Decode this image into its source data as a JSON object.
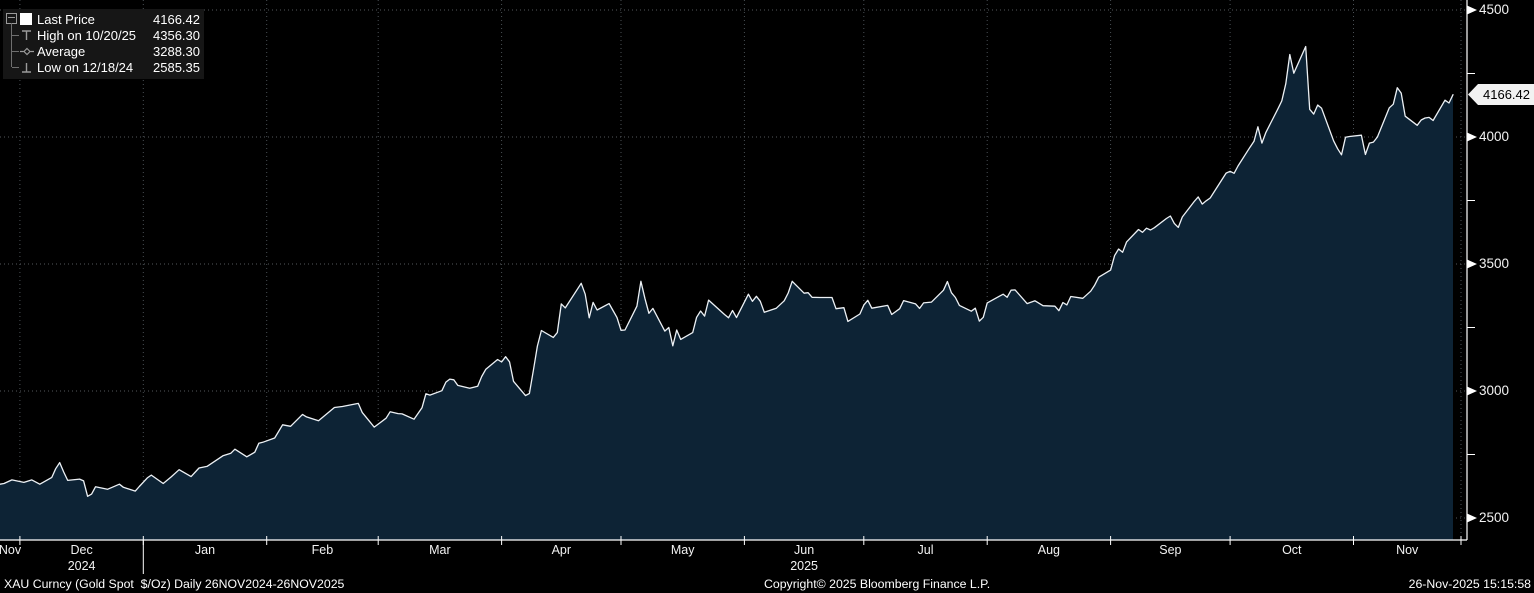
{
  "chart_data": {
    "type": "area",
    "title": "XAU Curncy (Gold Spot  $/Oz) Daily 26NOV2024-26NOV2025",
    "xlabel": "",
    "ylabel": "",
    "x_start_date": "2024-11-26",
    "x_end_date": "2025-11-26",
    "last_price": 4166.42,
    "last_price_label": "4166.42",
    "high": {
      "label": "High on 10/20/25",
      "value": 4356.3
    },
    "average": {
      "label": "Average",
      "value": 3288.3
    },
    "low": {
      "label": "Low on 12/18/24",
      "value": 2585.35
    },
    "y_axis": {
      "major_ticks": [
        2500,
        3000,
        3500,
        4000,
        4500
      ],
      "minor_ticks": [
        2750,
        3250,
        3750,
        4250
      ],
      "range_shown": [
        2500,
        4500
      ]
    },
    "grid": "dotted",
    "legend_position": "top-left",
    "months": [
      {
        "label": "Nov",
        "start_day": 0,
        "end_day": 5
      },
      {
        "label": "Dec",
        "start_day": 5,
        "end_day": 36
      },
      {
        "label": "Jan",
        "start_day": 36,
        "end_day": 67
      },
      {
        "label": "Feb",
        "start_day": 67,
        "end_day": 95
      },
      {
        "label": "Mar",
        "start_day": 95,
        "end_day": 126
      },
      {
        "label": "Apr",
        "start_day": 126,
        "end_day": 156
      },
      {
        "label": "May",
        "start_day": 156,
        "end_day": 187
      },
      {
        "label": "Jun",
        "start_day": 187,
        "end_day": 217
      },
      {
        "label": "Jul",
        "start_day": 217,
        "end_day": 248
      },
      {
        "label": "Aug",
        "start_day": 248,
        "end_day": 279
      },
      {
        "label": "Sep",
        "start_day": 279,
        "end_day": 309
      },
      {
        "label": "Oct",
        "start_day": 309,
        "end_day": 340
      },
      {
        "label": "Nov",
        "start_day": 340,
        "end_day": 367
      }
    ],
    "year_labels": [
      {
        "label": "2024",
        "month_index": 1
      },
      {
        "label": "2025",
        "month_index": 7
      }
    ],
    "series": [
      {
        "name": "Last Price",
        "points": [
          [
            0,
            2633
          ],
          [
            1,
            2636
          ],
          [
            3,
            2650
          ],
          [
            6,
            2640
          ],
          [
            8,
            2650
          ],
          [
            10,
            2633
          ],
          [
            13,
            2660
          ],
          [
            14,
            2694
          ],
          [
            15,
            2718
          ],
          [
            16,
            2681
          ],
          [
            17,
            2648
          ],
          [
            20,
            2653
          ],
          [
            21,
            2646
          ],
          [
            22,
            2585.35
          ],
          [
            23,
            2594
          ],
          [
            24,
            2623
          ],
          [
            27,
            2613
          ],
          [
            30,
            2633
          ],
          [
            31,
            2621
          ],
          [
            34,
            2606
          ],
          [
            35,
            2624
          ],
          [
            37,
            2658
          ],
          [
            38,
            2669
          ],
          [
            41,
            2636
          ],
          [
            43,
            2662
          ],
          [
            45,
            2690
          ],
          [
            48,
            2663
          ],
          [
            50,
            2697
          ],
          [
            52,
            2703
          ],
          [
            56,
            2745
          ],
          [
            58,
            2755
          ],
          [
            59,
            2771
          ],
          [
            62,
            2741
          ],
          [
            64,
            2759
          ],
          [
            65,
            2794
          ],
          [
            66,
            2798
          ],
          [
            69,
            2815
          ],
          [
            71,
            2867
          ],
          [
            73,
            2861
          ],
          [
            76,
            2908
          ],
          [
            77,
            2898
          ],
          [
            80,
            2883
          ],
          [
            84,
            2935
          ],
          [
            86,
            2939
          ],
          [
            90,
            2951
          ],
          [
            91,
            2915
          ],
          [
            93,
            2877
          ],
          [
            94,
            2858
          ],
          [
            97,
            2893
          ],
          [
            98,
            2918
          ],
          [
            100,
            2911
          ],
          [
            101,
            2910
          ],
          [
            104,
            2889
          ],
          [
            106,
            2934
          ],
          [
            107,
            2989
          ],
          [
            108,
            2984
          ],
          [
            111,
            3001
          ],
          [
            112,
            3035
          ],
          [
            113,
            3047
          ],
          [
            114,
            3044
          ],
          [
            115,
            3022
          ],
          [
            118,
            3011
          ],
          [
            120,
            3019
          ],
          [
            121,
            3057
          ],
          [
            122,
            3085
          ],
          [
            125,
            3124
          ],
          [
            126,
            3114
          ],
          [
            127,
            3135
          ],
          [
            128,
            3115
          ],
          [
            129,
            3038
          ],
          [
            132,
            2982
          ],
          [
            133,
            2990
          ],
          [
            134,
            3082
          ],
          [
            135,
            3177
          ],
          [
            136,
            3238
          ],
          [
            139,
            3211
          ],
          [
            140,
            3230
          ],
          [
            141,
            3343
          ],
          [
            142,
            3327
          ],
          [
            146,
            3424
          ],
          [
            147,
            3381
          ],
          [
            148,
            3288
          ],
          [
            149,
            3349
          ],
          [
            150,
            3319
          ],
          [
            153,
            3344
          ],
          [
            154,
            3317
          ],
          [
            155,
            3289
          ],
          [
            156,
            3239
          ],
          [
            157,
            3240
          ],
          [
            160,
            3334
          ],
          [
            161,
            3432
          ],
          [
            162,
            3365
          ],
          [
            163,
            3306
          ],
          [
            164,
            3325
          ],
          [
            167,
            3236
          ],
          [
            168,
            3250
          ],
          [
            169,
            3178
          ],
          [
            170,
            3240
          ],
          [
            171,
            3203
          ],
          [
            174,
            3230
          ],
          [
            175,
            3290
          ],
          [
            176,
            3315
          ],
          [
            177,
            3295
          ],
          [
            178,
            3358
          ],
          [
            182,
            3301
          ],
          [
            183,
            3288
          ],
          [
            184,
            3317
          ],
          [
            185,
            3289
          ],
          [
            188,
            3381
          ],
          [
            189,
            3353
          ],
          [
            190,
            3373
          ],
          [
            191,
            3353
          ],
          [
            192,
            3310
          ],
          [
            195,
            3326
          ],
          [
            197,
            3355
          ],
          [
            198,
            3386
          ],
          [
            199,
            3432
          ],
          [
            202,
            3385
          ],
          [
            203,
            3387
          ],
          [
            204,
            3369
          ],
          [
            206,
            3368
          ],
          [
            209,
            3368
          ],
          [
            210,
            3324
          ],
          [
            212,
            3328
          ],
          [
            213,
            3274
          ],
          [
            216,
            3303
          ],
          [
            217,
            3338
          ],
          [
            218,
            3357
          ],
          [
            219,
            3326
          ],
          [
            223,
            3337
          ],
          [
            224,
            3301
          ],
          [
            226,
            3324
          ],
          [
            227,
            3356
          ],
          [
            230,
            3343
          ],
          [
            231,
            3325
          ],
          [
            232,
            3347
          ],
          [
            234,
            3350
          ],
          [
            237,
            3397
          ],
          [
            238,
            3431
          ],
          [
            239,
            3387
          ],
          [
            240,
            3368
          ],
          [
            241,
            3337
          ],
          [
            244,
            3314
          ],
          [
            245,
            3326
          ],
          [
            246,
            3275
          ],
          [
            247,
            3290
          ],
          [
            248,
            3347
          ],
          [
            251,
            3373
          ],
          [
            252,
            3381
          ],
          [
            253,
            3369
          ],
          [
            254,
            3397
          ],
          [
            255,
            3398
          ],
          [
            258,
            3344
          ],
          [
            260,
            3355
          ],
          [
            262,
            3336
          ],
          [
            265,
            3334
          ],
          [
            266,
            3316
          ],
          [
            267,
            3348
          ],
          [
            268,
            3339
          ],
          [
            269,
            3372
          ],
          [
            272,
            3365
          ],
          [
            274,
            3393
          ],
          [
            275,
            3417
          ],
          [
            276,
            3448
          ],
          [
            279,
            3476
          ],
          [
            280,
            3533
          ],
          [
            281,
            3559
          ],
          [
            282,
            3546
          ],
          [
            283,
            3587
          ],
          [
            286,
            3636
          ],
          [
            287,
            3625
          ],
          [
            288,
            3641
          ],
          [
            289,
            3634
          ],
          [
            290,
            3643
          ],
          [
            293,
            3679
          ],
          [
            294,
            3689
          ],
          [
            295,
            3660
          ],
          [
            296,
            3644
          ],
          [
            297,
            3685
          ],
          [
            300,
            3746
          ],
          [
            301,
            3764
          ],
          [
            302,
            3736
          ],
          [
            303,
            3749
          ],
          [
            304,
            3760
          ],
          [
            307,
            3833
          ],
          [
            308,
            3858
          ],
          [
            309,
            3865
          ],
          [
            310,
            3857
          ],
          [
            311,
            3886
          ],
          [
            314,
            3960
          ],
          [
            315,
            3983
          ],
          [
            316,
            4040
          ],
          [
            317,
            3976
          ],
          [
            318,
            4018
          ],
          [
            321,
            4110
          ],
          [
            322,
            4142
          ],
          [
            323,
            4210
          ],
          [
            324,
            4325
          ],
          [
            325,
            4251
          ],
          [
            328,
            4356.3
          ],
          [
            329,
            4109
          ],
          [
            330,
            4090
          ],
          [
            331,
            4126
          ],
          [
            332,
            4113
          ],
          [
            335,
            3985
          ],
          [
            336,
            3954
          ],
          [
            337,
            3930
          ],
          [
            338,
            3999
          ],
          [
            339,
            4002
          ],
          [
            342,
            4007
          ],
          [
            343,
            3931
          ],
          [
            344,
            3976
          ],
          [
            345,
            3980
          ],
          [
            346,
            4000
          ],
          [
            349,
            4115
          ],
          [
            350,
            4129
          ],
          [
            351,
            4194
          ],
          [
            352,
            4173
          ],
          [
            353,
            4082
          ],
          [
            356,
            4046
          ],
          [
            357,
            4067
          ],
          [
            358,
            4075
          ],
          [
            359,
            4077
          ],
          [
            360,
            4065
          ],
          [
            363,
            4145
          ],
          [
            364,
            4134
          ],
          [
            365,
            4166.42
          ]
        ]
      }
    ],
    "colors": {
      "background": "#000000",
      "area_fill": "#0d2335",
      "line": "#edf1f5",
      "grid": "#4e5358",
      "axis": "#ffffff",
      "tag_bg": "#f2f2f2",
      "tag_text": "#000000",
      "legend_bg": "#161616",
      "text": "#f2f2f2"
    }
  },
  "legend": {
    "rows": [
      {
        "icon": "white-square-swatch",
        "label": "Last Price",
        "value": "4166.42"
      },
      {
        "icon": "high-whisker-icon",
        "label": "High on 10/20/25",
        "value": "4356.30"
      },
      {
        "icon": "average-diamond-icon",
        "label": "Average",
        "value": "3288.30"
      },
      {
        "icon": "low-whisker-icon",
        "label": "Low on 12/18/24",
        "value": "2585.35"
      }
    ]
  },
  "footer": {
    "left": "XAU Curncy (Gold Spot  $/Oz) Daily 26NOV2024-26NOV2025",
    "center": "Copyright© 2025 Bloomberg Finance L.P.",
    "right": "26-Nov-2025 15:15:58"
  }
}
